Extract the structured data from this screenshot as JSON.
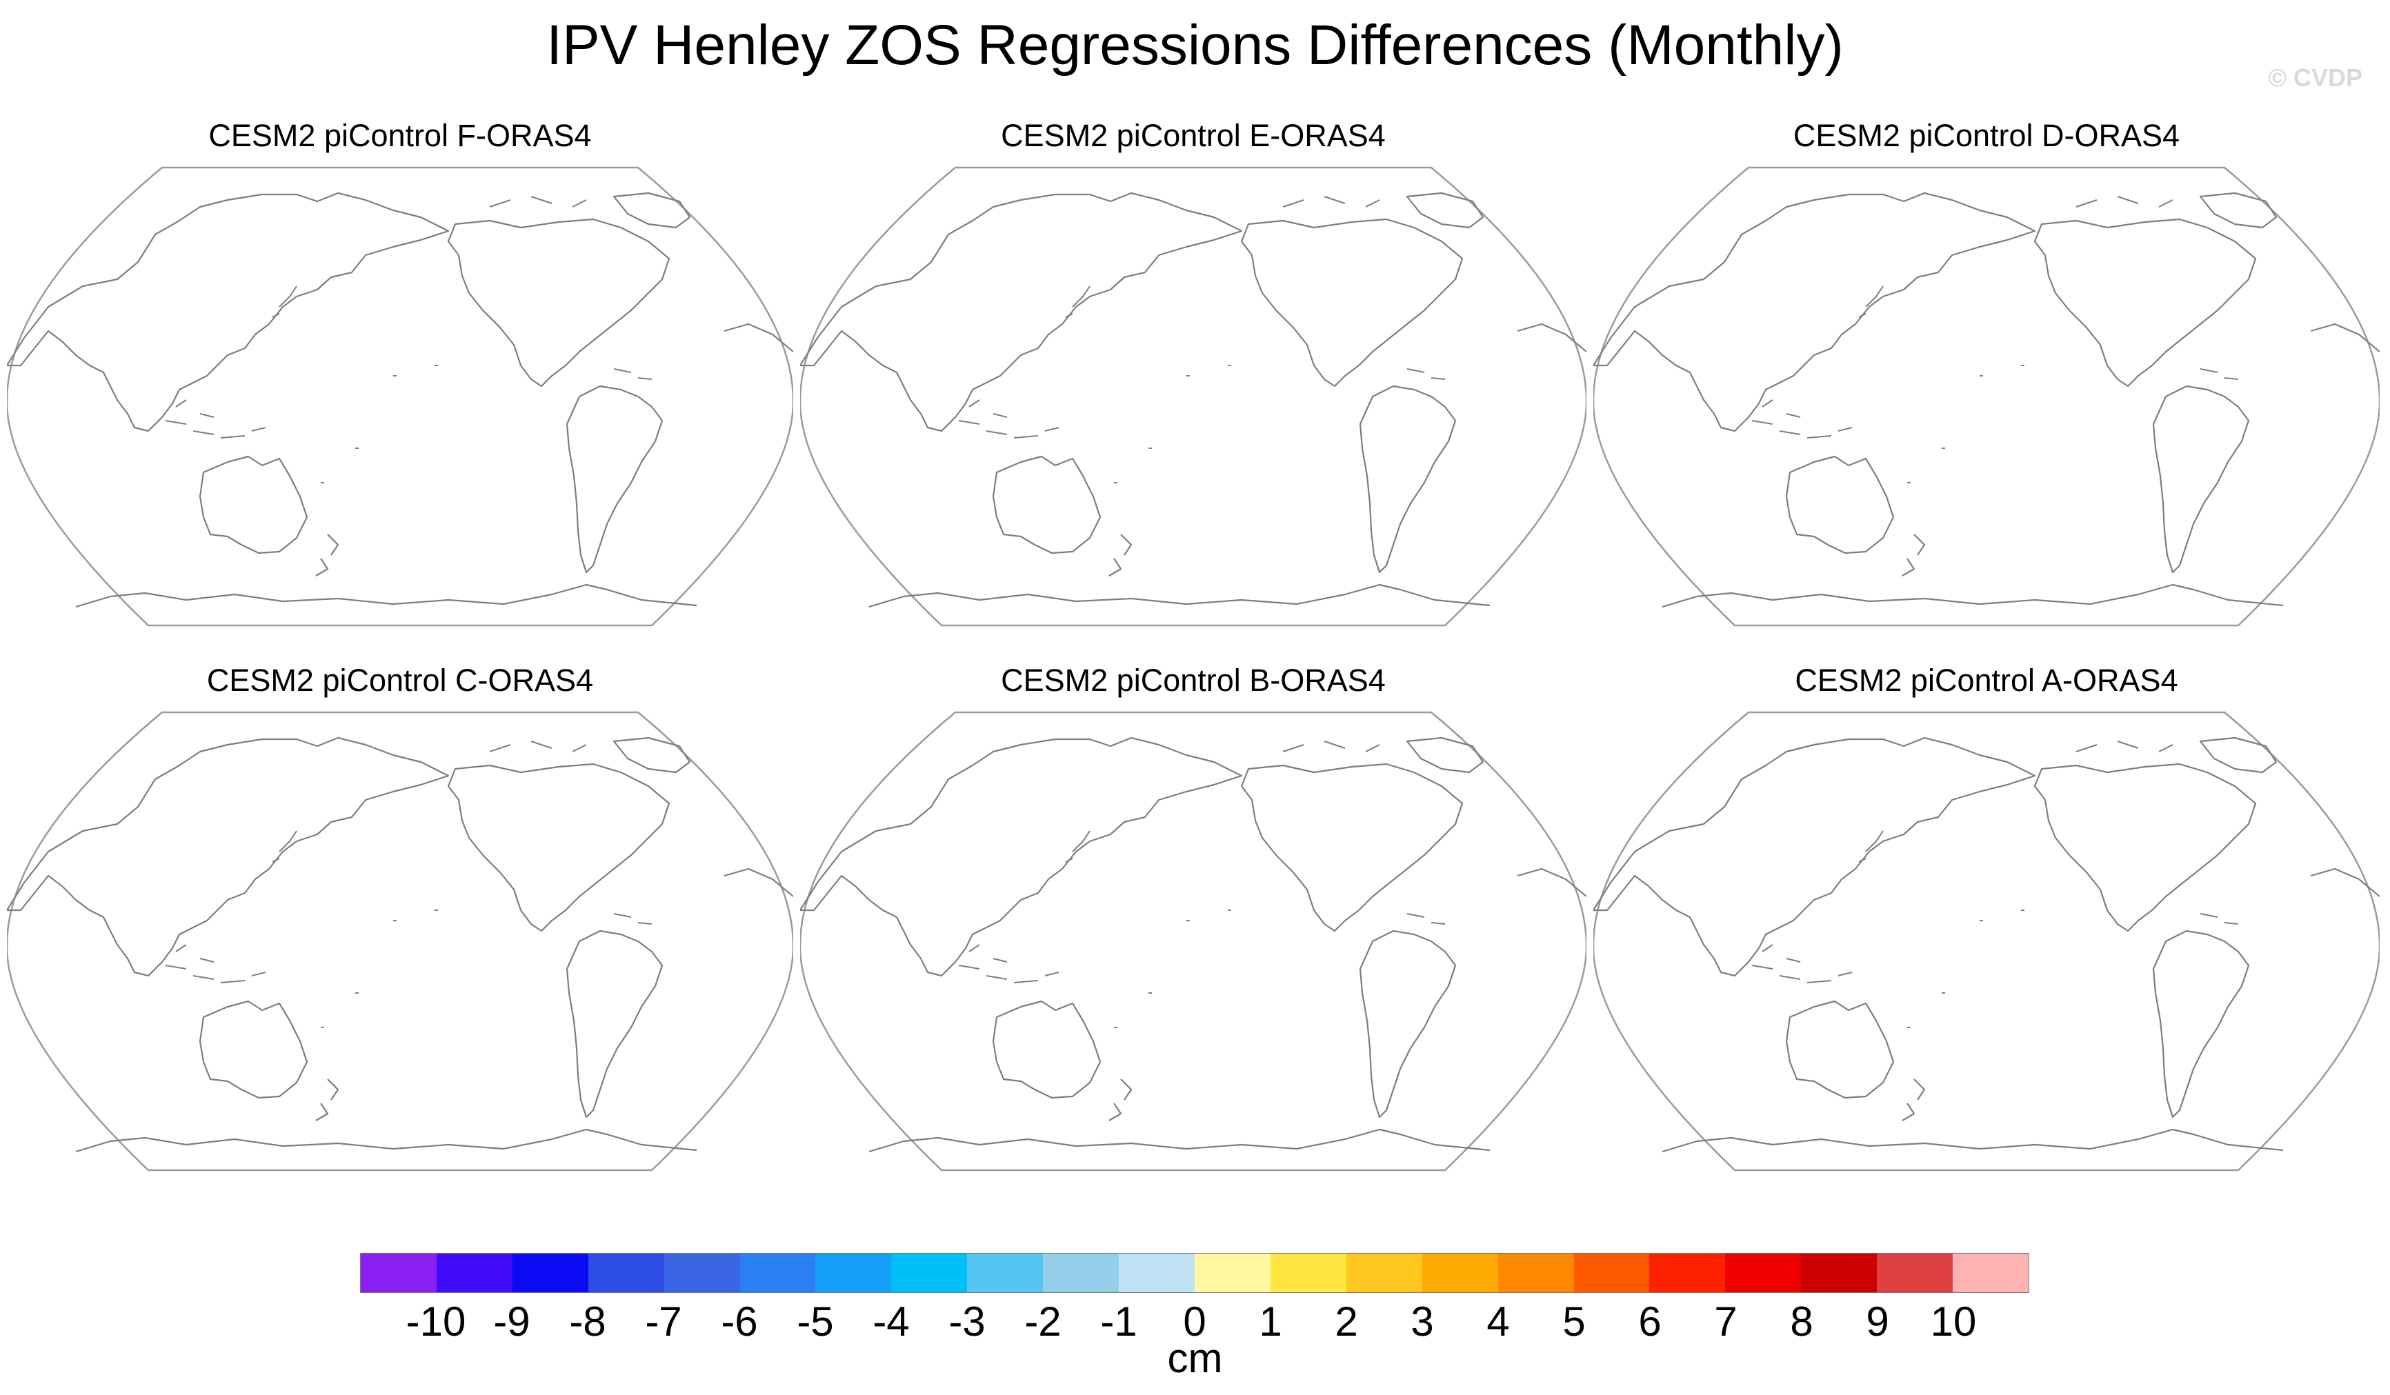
{
  "title": "IPV Henley ZOS Regressions Differences (Monthly)",
  "watermark": "© CVDP",
  "panels": [
    {
      "title": "CESM2 piControl F-ORAS4"
    },
    {
      "title": "CESM2 piControl E-ORAS4"
    },
    {
      "title": "CESM2 piControl D-ORAS4"
    },
    {
      "title": "CESM2 piControl C-ORAS4"
    },
    {
      "title": "CESM2 piControl B-ORAS4"
    },
    {
      "title": "CESM2 piControl A-ORAS4"
    }
  ],
  "projection": "Robinson, Pacific-centered",
  "colorbar": {
    "units": "cm",
    "tick_labels": [
      "-10",
      "-9",
      "-8",
      "-7",
      "-6",
      "-5",
      "-4",
      "-3",
      "-2",
      "-1",
      "0",
      "1",
      "2",
      "3",
      "4",
      "5",
      "6",
      "7",
      "8",
      "9",
      "10"
    ],
    "colors": [
      "#8a1ff2",
      "#3f0bfa",
      "#0b0bf5",
      "#2e4de6",
      "#3a66e6",
      "#2a80f2",
      "#14a0f8",
      "#00bff7",
      "#55c6f2",
      "#94cfea",
      "#bfe2f4",
      "#fff8a0",
      "#ffe640",
      "#ffc61f",
      "#ffaa00",
      "#ff8800",
      "#ff5a00",
      "#ff2200",
      "#f00000",
      "#cc0000",
      "#dd4040",
      "#ffb2b2"
    ]
  }
}
